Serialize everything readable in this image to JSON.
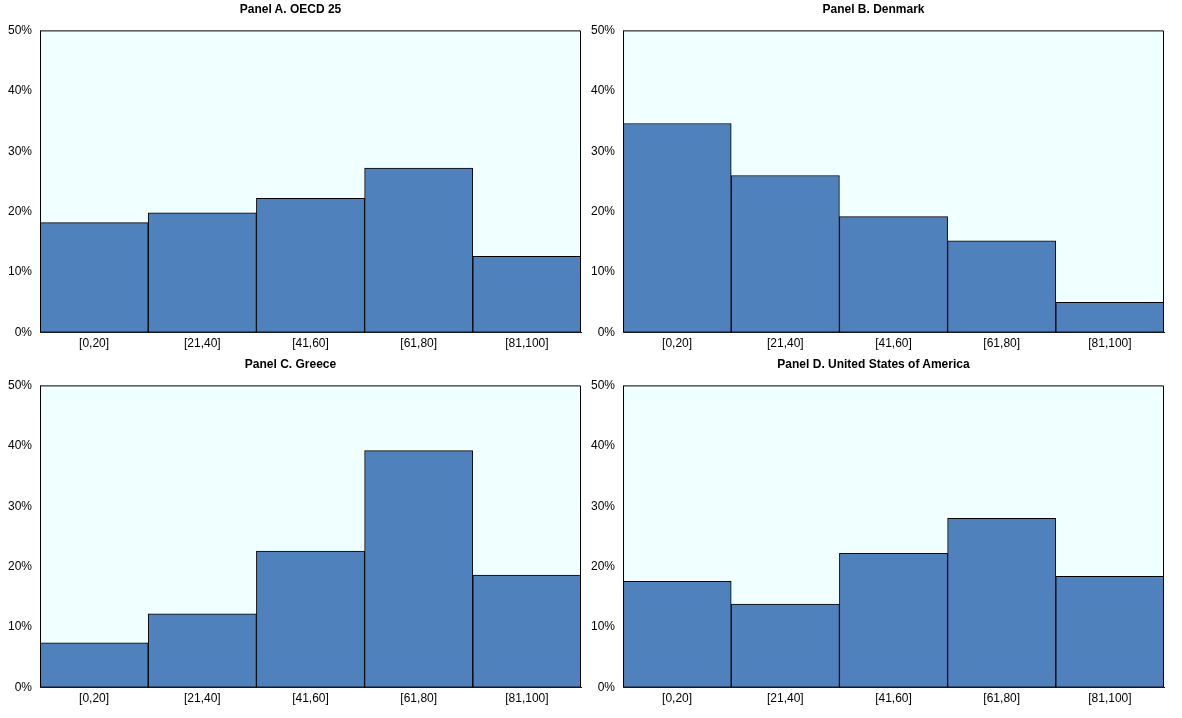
{
  "chart_data": [
    {
      "type": "bar",
      "title": "Panel A. OECD 25",
      "categories": [
        "[0,20]",
        "[21,40]",
        "[41,60]",
        "[61,80]",
        "[81,100]"
      ],
      "values": [
        18.2,
        19.8,
        22.2,
        27.2,
        12.6
      ],
      "color": "#4f81bd",
      "ylim": [
        0,
        50
      ],
      "yticks": [
        {
          "value": 0,
          "label": "0%"
        },
        {
          "value": 10,
          "label": "10%"
        },
        {
          "value": 20,
          "label": "20%"
        },
        {
          "value": 30,
          "label": "30%"
        },
        {
          "value": 40,
          "label": "40%"
        },
        {
          "value": 50,
          "label": "50%"
        }
      ],
      "grid": false,
      "legend": false
    },
    {
      "type": "bar",
      "title": "Panel B. Denmark",
      "categories": [
        "[0,20]",
        "[21,40]",
        "[41,60]",
        "[61,80]",
        "[81,100]"
      ],
      "values": [
        34.6,
        26,
        19.2,
        15.2,
        5
      ],
      "color": "#4f81bd",
      "ylim": [
        0,
        50
      ],
      "yticks": [
        {
          "value": 0,
          "label": "0%"
        },
        {
          "value": 10,
          "label": "10%"
        },
        {
          "value": 20,
          "label": "20%"
        },
        {
          "value": 30,
          "label": "30%"
        },
        {
          "value": 40,
          "label": "40%"
        },
        {
          "value": 50,
          "label": "50%"
        }
      ],
      "grid": false,
      "legend": false
    },
    {
      "type": "bar",
      "title": "Panel C. Greece",
      "categories": [
        "[0,20]",
        "[21,40]",
        "[41,60]",
        "[61,80]",
        "[81,100]"
      ],
      "values": [
        7.4,
        12.2,
        22.6,
        39.2,
        18.6
      ],
      "color": "#4f81bd",
      "ylim": [
        0,
        50
      ],
      "yticks": [
        {
          "value": 0,
          "label": "0%"
        },
        {
          "value": 10,
          "label": "10%"
        },
        {
          "value": 20,
          "label": "20%"
        },
        {
          "value": 30,
          "label": "30%"
        },
        {
          "value": 40,
          "label": "40%"
        },
        {
          "value": 50,
          "label": "50%"
        }
      ],
      "grid": false,
      "legend": false
    },
    {
      "type": "bar",
      "title": "Panel D. United States of America",
      "categories": [
        "[0,20]",
        "[21,40]",
        "[41,60]",
        "[61,80]",
        "[81,100]"
      ],
      "values": [
        17.6,
        13.8,
        22.2,
        28,
        18.4
      ],
      "color": "#4f81bd",
      "ylim": [
        0,
        50
      ],
      "yticks": [
        {
          "value": 0,
          "label": "0%"
        },
        {
          "value": 10,
          "label": "10%"
        },
        {
          "value": 20,
          "label": "20%"
        },
        {
          "value": 30,
          "label": "30%"
        },
        {
          "value": 40,
          "label": "40%"
        },
        {
          "value": 50,
          "label": "50%"
        }
      ],
      "grid": false,
      "legend": false
    }
  ]
}
